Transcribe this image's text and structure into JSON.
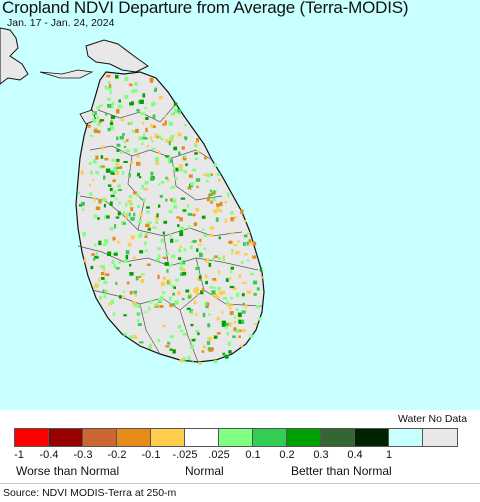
{
  "title": "Cropland NDVI Departure from Average (Terra-MODIS)",
  "date_range": "Jan. 17 - Jan. 24, 2024",
  "legend": {
    "nodata_title": "Water No Data",
    "swatch_colors": [
      "#ff0000",
      "#990000",
      "#cc6633",
      "#e68a1a",
      "#ffcc4d",
      "#ffffff",
      "#80ff80",
      "#33cc55",
      "#00a000",
      "#336633",
      "#002200",
      "#c8ffff",
      "#e8e8e8"
    ],
    "tick_labels": [
      "-1",
      "-0.4",
      "-0.3",
      "-0.2",
      "-0.1",
      "-.025",
      ".025",
      "0.1",
      "0.2",
      "0.3",
      "0.4",
      "1"
    ],
    "category_worse": "Worse than Normal",
    "category_normal": "Normal",
    "category_better": "Better than Normal"
  },
  "source": "Source: NDVI MODIS-Terra at 250-m",
  "map_colors": {
    "water": "#c8ffff",
    "land": "#e8e8e8",
    "boundary": "#555555",
    "coast": "#111111"
  }
}
